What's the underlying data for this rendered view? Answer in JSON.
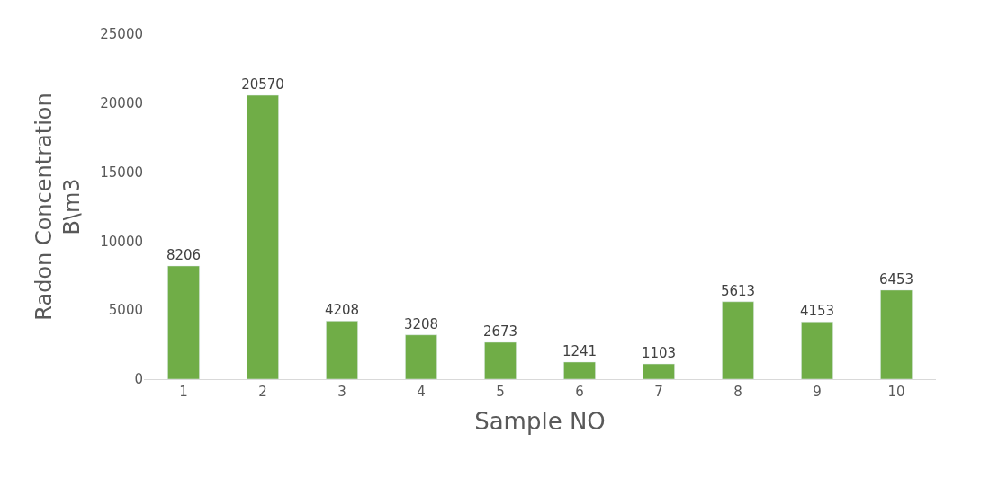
{
  "chart_data": {
    "type": "bar",
    "xlabel": "Sample NO",
    "ylabel": "Radon Concentration\nB\\m3",
    "categories": [
      "1",
      "2",
      "3",
      "4",
      "5",
      "6",
      "7",
      "8",
      "9",
      "10"
    ],
    "values": [
      8206,
      20570,
      4208,
      3208,
      2673,
      1241,
      1103,
      5613,
      4153,
      6453
    ],
    "color": "#70ad47",
    "data_labels": true,
    "ylim": [
      0,
      25000
    ],
    "yticks": [
      0,
      5000,
      10000,
      15000,
      20000,
      25000
    ]
  }
}
